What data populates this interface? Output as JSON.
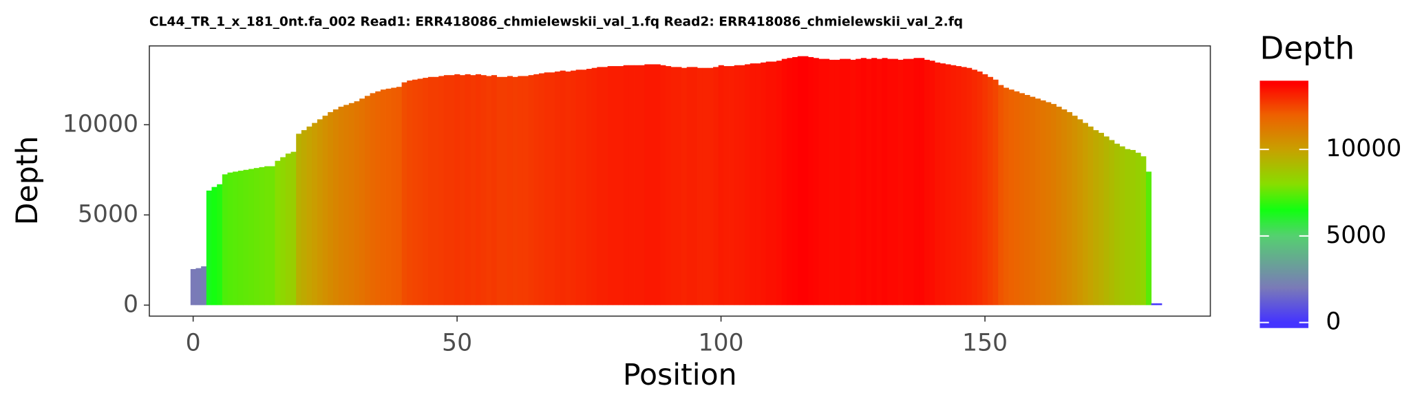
{
  "chart_data": {
    "type": "bar",
    "title": "CL44_TR_1_x_181_0nt.fa_002 Read1: ERR418086_chmielewskii_val_1.fq Read2: ERR418086_chmielewskii_val_2.fq",
    "xlabel": "Position",
    "ylabel": "Depth",
    "legend_title": "Depth",
    "x": [
      0,
      1,
      2,
      3,
      4,
      5,
      6,
      7,
      8,
      9,
      10,
      11,
      12,
      13,
      14,
      15,
      16,
      17,
      18,
      19,
      20,
      21,
      22,
      23,
      24,
      25,
      26,
      27,
      28,
      29,
      30,
      31,
      32,
      33,
      34,
      35,
      36,
      37,
      38,
      39,
      40,
      41,
      42,
      43,
      44,
      45,
      46,
      47,
      48,
      49,
      50,
      51,
      52,
      53,
      54,
      55,
      56,
      57,
      58,
      59,
      60,
      61,
      62,
      63,
      64,
      65,
      66,
      67,
      68,
      69,
      70,
      71,
      72,
      73,
      74,
      75,
      76,
      77,
      78,
      79,
      80,
      81,
      82,
      83,
      84,
      85,
      86,
      87,
      88,
      89,
      90,
      91,
      92,
      93,
      94,
      95,
      96,
      97,
      98,
      99,
      100,
      101,
      102,
      103,
      104,
      105,
      106,
      107,
      108,
      109,
      110,
      111,
      112,
      113,
      114,
      115,
      116,
      117,
      118,
      119,
      120,
      121,
      122,
      123,
      124,
      125,
      126,
      127,
      128,
      129,
      130,
      131,
      132,
      133,
      134,
      135,
      136,
      137,
      138,
      139,
      140,
      141,
      142,
      143,
      144,
      145,
      146,
      147,
      148,
      149,
      150,
      151,
      152,
      153,
      154,
      155,
      156,
      157,
      158,
      159,
      160,
      161,
      162,
      163,
      164,
      165,
      166,
      167,
      168,
      169,
      170,
      171,
      172,
      173,
      174,
      175,
      176,
      177,
      178,
      179,
      180,
      181,
      182,
      183
    ],
    "values": [
      2000,
      2050,
      2150,
      6350,
      6550,
      6700,
      7250,
      7350,
      7400,
      7450,
      7500,
      7550,
      7600,
      7650,
      7700,
      7700,
      8000,
      8200,
      8400,
      8500,
      9500,
      9700,
      9900,
      10100,
      10300,
      10500,
      10700,
      10850,
      11000,
      11100,
      11200,
      11300,
      11450,
      11600,
      11750,
      11850,
      11950,
      12000,
      12050,
      12100,
      12350,
      12450,
      12500,
      12550,
      12600,
      12650,
      12650,
      12700,
      12750,
      12750,
      12800,
      12750,
      12800,
      12750,
      12800,
      12750,
      12700,
      12750,
      12650,
      12650,
      12700,
      12650,
      12700,
      12700,
      12750,
      12800,
      12850,
      12900,
      12900,
      12950,
      13000,
      12950,
      13000,
      13050,
      13050,
      13100,
      13150,
      13200,
      13200,
      13250,
      13250,
      13250,
      13300,
      13300,
      13300,
      13300,
      13350,
      13350,
      13350,
      13300,
      13250,
      13200,
      13200,
      13150,
      13200,
      13200,
      13150,
      13150,
      13150,
      13200,
      13300,
      13250,
      13250,
      13300,
      13300,
      13350,
      13400,
      13400,
      13450,
      13500,
      13500,
      13550,
      13650,
      13700,
      13750,
      13800,
      13800,
      13750,
      13700,
      13650,
      13650,
      13600,
      13600,
      13650,
      13650,
      13600,
      13650,
      13700,
      13650,
      13700,
      13650,
      13700,
      13650,
      13650,
      13600,
      13650,
      13650,
      13700,
      13700,
      13600,
      13550,
      13450,
      13400,
      13350,
      13300,
      13250,
      13200,
      13150,
      13050,
      12950,
      12800,
      12650,
      12500,
      12200,
      12050,
      11950,
      11850,
      11750,
      11650,
      11550,
      11450,
      11350,
      11250,
      11150,
      11000,
      10850,
      10700,
      10500,
      10300,
      10100,
      9900,
      9700,
      9550,
      9350,
      9150,
      8950,
      8800,
      8650,
      8600,
      8450,
      8250,
      7400,
      100,
      100
    ],
    "xlim": [
      -8.3,
      192.7
    ],
    "xticks": [
      0,
      50,
      100,
      150
    ],
    "ylim": [
      -610,
      14370
    ],
    "yticks": [
      0,
      5000,
      10000
    ],
    "color_lim": [
      -320,
      13970
    ],
    "legend_ticks": [
      0,
      5000,
      10000
    ],
    "color_scale": [
      {
        "value": 0,
        "color": "#4433ff"
      },
      {
        "value": 2000,
        "color": "#7a7ab8"
      },
      {
        "value": 5000,
        "color": "#55d070"
      },
      {
        "value": 6500,
        "color": "#11ff11"
      },
      {
        "value": 8000,
        "color": "#88dd00"
      },
      {
        "value": 10000,
        "color": "#c8a000"
      },
      {
        "value": 12000,
        "color": "#ee6000"
      },
      {
        "value": 13800,
        "color": "#ff0000"
      }
    ]
  }
}
